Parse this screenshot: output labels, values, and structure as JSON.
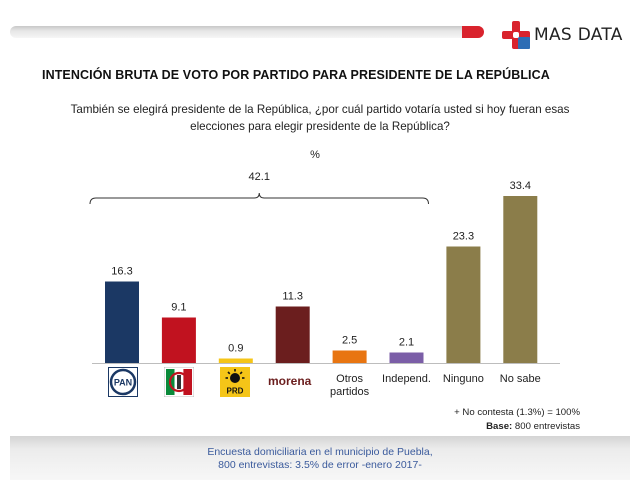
{
  "header": {
    "brand": "MAS DATA",
    "colors": {
      "red": "#d9232d",
      "blue": "#2d6db5"
    }
  },
  "main_title": "INTENCIÓN BRUTA DE VOTO POR PARTIDO PARA PRESIDENTE DE LA REPÚBLICA",
  "question_line1": "También se elegirá presidente de la República, ¿por cuál partido votaría usted si hoy fueran esas",
  "question_line2": "elecciones para elegir presidente de la República?",
  "unit": "%",
  "chart_data": {
    "type": "bar",
    "ylim": [
      0,
      40
    ],
    "grid": false,
    "categories": [
      "PAN",
      "PRI",
      "PRD",
      "morena",
      "Otros partidos",
      "Independ.",
      "Ninguno",
      "No sabe"
    ],
    "values": [
      16.3,
      9.1,
      0.9,
      11.3,
      2.5,
      2.1,
      23.3,
      33.4
    ],
    "value_labels": [
      "16.3",
      "9.1",
      "0.9",
      "11.3",
      "2.5",
      "2.1",
      "23.3",
      "33.4"
    ],
    "colors": [
      "#1b3864",
      "#c1121f",
      "#f5c518",
      "#6b1e1e",
      "#e87511",
      "#7b5ea7",
      "#8b7d4a",
      "#8b7d4a"
    ],
    "category_label_lines": [
      [],
      [],
      [],
      [],
      [
        "Otros",
        "partidos"
      ],
      [
        "Independ."
      ],
      [
        "Ninguno"
      ],
      [
        "No sabe"
      ]
    ],
    "bracket": {
      "from": 0,
      "to": 5,
      "label": "42.1"
    }
  },
  "party_logos": {
    "pan": "PAN",
    "prd": "PRD",
    "morena": "morena"
  },
  "notes": {
    "no_contesta": "+ No contesta (1.3%) = 100%",
    "base_label": "Base:",
    "base_value": " 800 entrevistas"
  },
  "footer": {
    "line1": "Encuesta domiciliaria en el municipio de Puebla,",
    "line2": "800 entrevistas: 3.5% de error -enero 2017-"
  }
}
